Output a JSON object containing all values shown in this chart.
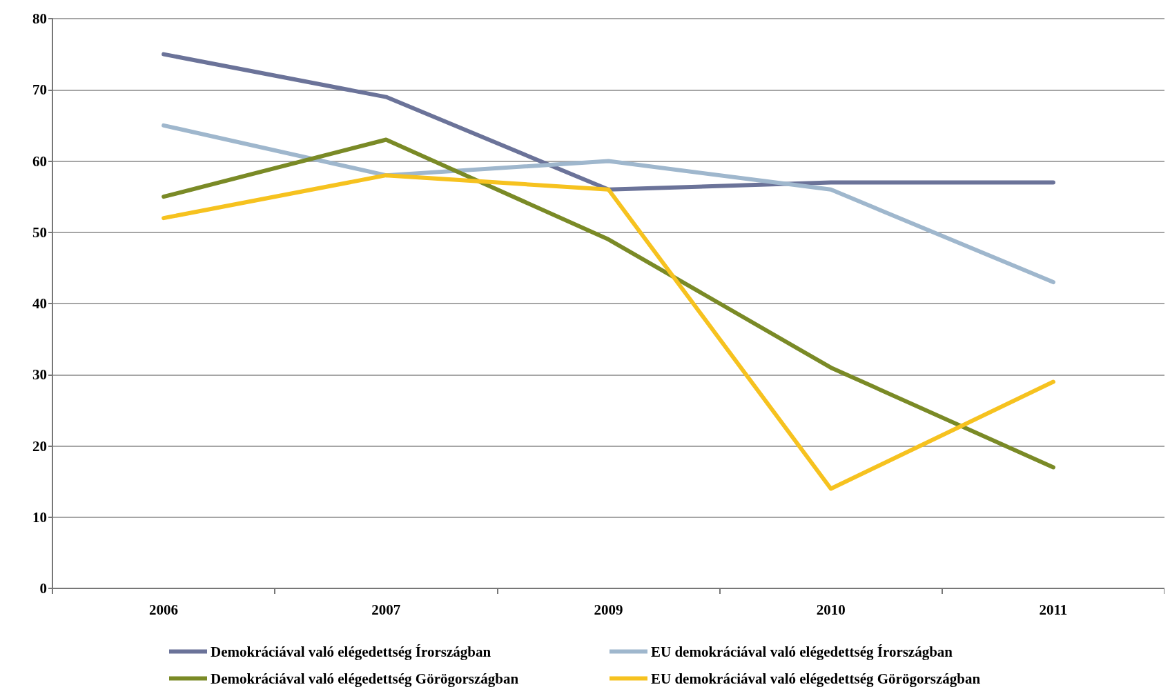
{
  "chart_data": {
    "type": "line",
    "categories": [
      "2006",
      "2007",
      "2009",
      "2010",
      "2011"
    ],
    "series": [
      {
        "name": "Demokráciával való elégedettség Írországban",
        "color": "#6b7399",
        "values": [
          75,
          69,
          56,
          57,
          57
        ]
      },
      {
        "name": "EU demokráciával való elégedettség Írországban",
        "color": "#9fb7cd",
        "values": [
          65,
          58,
          60,
          56,
          43
        ]
      },
      {
        "name": "Demokráciával való elégedettség Görögországban",
        "color": "#7a8a26",
        "values": [
          55,
          63,
          49,
          31,
          17
        ]
      },
      {
        "name": "EU demokráciával való elégedettség Görögországban",
        "color": "#f6c21f",
        "values": [
          52,
          58,
          56,
          14,
          29
        ]
      }
    ],
    "ylim": [
      0,
      80
    ],
    "yticks": [
      0,
      10,
      20,
      30,
      40,
      50,
      60,
      70,
      80
    ],
    "grid": "y",
    "legend": "bottom",
    "marker": "none",
    "line_style": "solid"
  }
}
